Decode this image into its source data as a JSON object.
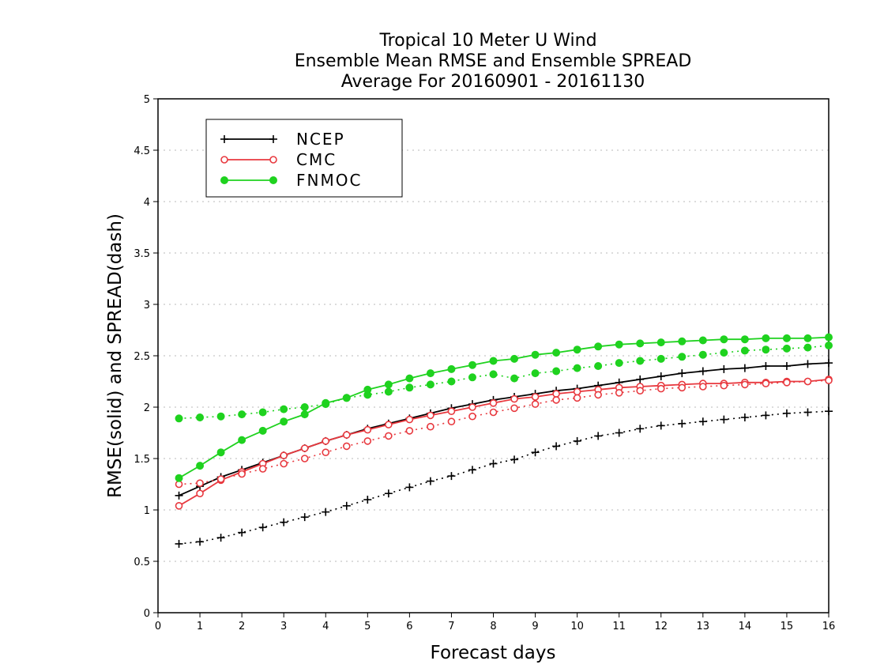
{
  "chart_data": {
    "type": "line",
    "title": [
      "Tropical 10 Meter U Wind",
      "Ensemble Mean RMSE and Ensemble SPREAD",
      "Average For 20160901 - 20161130"
    ],
    "xlabel": "Forecast days",
    "ylabel": "RMSE(solid) and SPREAD(dash)",
    "xlim": [
      0,
      16
    ],
    "ylim": [
      0,
      5
    ],
    "xticks": [
      "0",
      "1",
      "2",
      "3",
      "4",
      "5",
      "6",
      "7",
      "8",
      "9",
      "10",
      "11",
      "12",
      "13",
      "14",
      "15",
      "16"
    ],
    "yticks": [
      "0",
      "0.5",
      "1",
      "1.5",
      "2",
      "2.5",
      "3",
      "3.5",
      "4",
      "4.5",
      "5"
    ],
    "grid": true,
    "legend_position": "top-left",
    "x": [
      0.5,
      1,
      1.5,
      2,
      2.5,
      3,
      3.5,
      4,
      4.5,
      5,
      5.5,
      6,
      6.5,
      7,
      7.5,
      8,
      8.5,
      9,
      9.5,
      10,
      10.5,
      11,
      11.5,
      12,
      12.5,
      13,
      13.5,
      14,
      14.5,
      15,
      15.5,
      16
    ],
    "series": [
      {
        "name": "NCEP",
        "style": "solid",
        "color": "#000000",
        "marker": "plus",
        "values": [
          1.14,
          1.23,
          1.32,
          1.39,
          1.46,
          1.53,
          1.6,
          1.67,
          1.73,
          1.79,
          1.84,
          1.89,
          1.94,
          1.99,
          2.03,
          2.07,
          2.1,
          2.13,
          2.16,
          2.18,
          2.21,
          2.24,
          2.27,
          2.3,
          2.33,
          2.35,
          2.37,
          2.38,
          2.4,
          2.4,
          2.42,
          2.43
        ]
      },
      {
        "name": "NCEP",
        "style": "dash",
        "color": "#000000",
        "marker": "plus",
        "values": [
          0.67,
          0.69,
          0.73,
          0.78,
          0.83,
          0.88,
          0.93,
          0.98,
          1.04,
          1.1,
          1.16,
          1.22,
          1.28,
          1.33,
          1.39,
          1.45,
          1.49,
          1.56,
          1.62,
          1.67,
          1.72,
          1.75,
          1.79,
          1.82,
          1.84,
          1.86,
          1.88,
          1.9,
          1.92,
          1.94,
          1.95,
          1.96
        ]
      },
      {
        "name": "CMC",
        "style": "solid",
        "color": "#e8393f",
        "marker": "open-circle",
        "values": [
          1.04,
          1.16,
          1.29,
          1.37,
          1.45,
          1.53,
          1.6,
          1.67,
          1.73,
          1.78,
          1.83,
          1.88,
          1.92,
          1.96,
          2.0,
          2.04,
          2.08,
          2.1,
          2.13,
          2.15,
          2.17,
          2.19,
          2.2,
          2.21,
          2.22,
          2.23,
          2.23,
          2.24,
          2.24,
          2.25,
          2.25,
          2.27
        ]
      },
      {
        "name": "CMC",
        "style": "dash",
        "color": "#e8393f",
        "marker": "open-circle",
        "values": [
          1.25,
          1.26,
          1.3,
          1.35,
          1.4,
          1.45,
          1.5,
          1.56,
          1.62,
          1.67,
          1.72,
          1.77,
          1.81,
          1.86,
          1.91,
          1.95,
          1.99,
          2.03,
          2.07,
          2.09,
          2.12,
          2.14,
          2.16,
          2.18,
          2.19,
          2.2,
          2.21,
          2.22,
          2.23,
          2.24,
          2.25,
          2.26
        ]
      },
      {
        "name": "FNMOC",
        "style": "solid",
        "color": "#1fd21f",
        "marker": "filled-circle",
        "values": [
          1.31,
          1.43,
          1.56,
          1.68,
          1.77,
          1.86,
          1.93,
          2.04,
          2.09,
          2.17,
          2.22,
          2.28,
          2.33,
          2.37,
          2.41,
          2.45,
          2.47,
          2.51,
          2.53,
          2.56,
          2.59,
          2.61,
          2.62,
          2.63,
          2.64,
          2.65,
          2.66,
          2.66,
          2.67,
          2.67,
          2.67,
          2.68
        ]
      },
      {
        "name": "FNMOC",
        "style": "dash",
        "color": "#1fd21f",
        "marker": "filled-circle",
        "values": [
          1.89,
          1.9,
          1.91,
          1.93,
          1.95,
          1.98,
          2.0,
          2.03,
          2.09,
          2.12,
          2.15,
          2.19,
          2.22,
          2.25,
          2.29,
          2.32,
          2.28,
          2.33,
          2.35,
          2.38,
          2.4,
          2.43,
          2.45,
          2.47,
          2.49,
          2.51,
          2.53,
          2.55,
          2.56,
          2.57,
          2.58,
          2.6
        ]
      }
    ],
    "legend": [
      {
        "name": "NCEP",
        "color": "#000000",
        "marker": "plus"
      },
      {
        "name": "CMC",
        "color": "#e8393f",
        "marker": "open-circle"
      },
      {
        "name": "FNMOC",
        "color": "#1fd21f",
        "marker": "filled-circle"
      }
    ]
  }
}
